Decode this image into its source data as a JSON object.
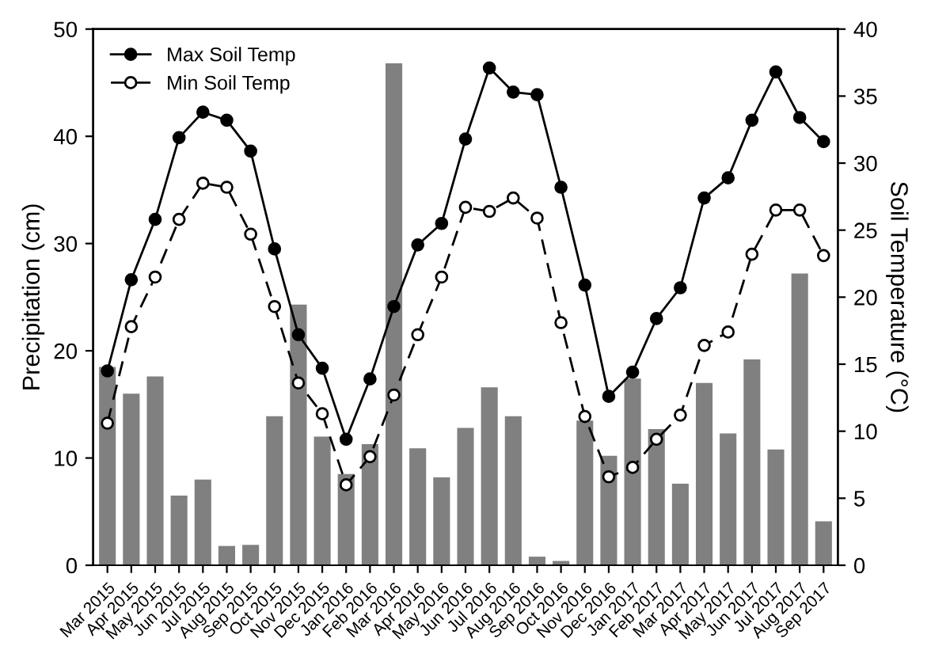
{
  "chart_data": {
    "type": "bar",
    "ylabel": "Precipitation (cm)",
    "y2label": "Soil Temperature (°C)",
    "categories": [
      "Mar 2015",
      "Apr 2015",
      "May 2015",
      "Jun 2015",
      "Jul 2015",
      "Aug 2015",
      "Sep 2015",
      "Oct 2015",
      "Nov 2015",
      "Dec 2015",
      "Jan 2016",
      "Feb 2016",
      "Mar 2016",
      "Apr 2016",
      "May 2016",
      "Jun 2016",
      "Jul 2016",
      "Aug 2016",
      "Sep 2016",
      "Oct 2016",
      "Nov 2016",
      "Dec 2016",
      "Jan 2017",
      "Feb 2017",
      "Mar 2017",
      "Apr 2017",
      "May 2017",
      "Jun 2017",
      "Jul 2017",
      "Aug 2017",
      "Sep 2017"
    ],
    "series": [
      {
        "color": "#808080",
        "values": [
          18.5,
          16.0,
          17.6,
          6.5,
          8.0,
          1.8,
          1.9,
          13.9,
          24.3,
          12.0,
          8.5,
          11.3,
          46.8,
          10.9,
          8.2,
          12.8,
          16.6,
          13.9,
          0.8,
          0.4,
          13.5,
          10.2,
          17.4,
          12.7,
          7.6,
          17.0,
          12.3,
          19.2,
          10.8,
          27.2,
          4.1
        ]
      },
      {
        "type": "line",
        "axis": "y2",
        "name": "Max Soil Temp",
        "color": "#000000",
        "marker": "circle",
        "line_style": "solid",
        "values": [
          14.5,
          21.3,
          25.8,
          31.9,
          33.8,
          33.2,
          30.9,
          23.6,
          17.2,
          14.7,
          9.4,
          13.9,
          19.3,
          23.9,
          25.5,
          31.8,
          37.1,
          35.3,
          35.1,
          28.2,
          20.9,
          12.6,
          14.4,
          18.4,
          20.7,
          27.4,
          28.9,
          33.2,
          36.8,
          33.4,
          31.6
        ]
      },
      {
        "type": "line",
        "axis": "y2",
        "name": "Min Soil Temp",
        "color": "#000000",
        "marker": "circle",
        "line_style": "dashed",
        "values": [
          10.6,
          17.8,
          21.5,
          25.8,
          28.5,
          28.2,
          24.7,
          19.3,
          13.6,
          11.3,
          6.0,
          8.1,
          12.7,
          17.2,
          21.5,
          26.7,
          26.4,
          27.4,
          25.9,
          18.1,
          11.1,
          6.6,
          7.3,
          9.4,
          11.2,
          16.4,
          17.4,
          23.2,
          26.5,
          26.5,
          23.1
        ]
      }
    ],
    "ylim": [
      0,
      50
    ],
    "yticks": [
      0,
      10,
      20,
      30,
      40,
      50
    ],
    "y2lim": [
      0,
      40
    ],
    "y2ticks": [
      0,
      5,
      10,
      15,
      20,
      25,
      30,
      35,
      40
    ],
    "legend": "top left",
    "grid": false
  }
}
